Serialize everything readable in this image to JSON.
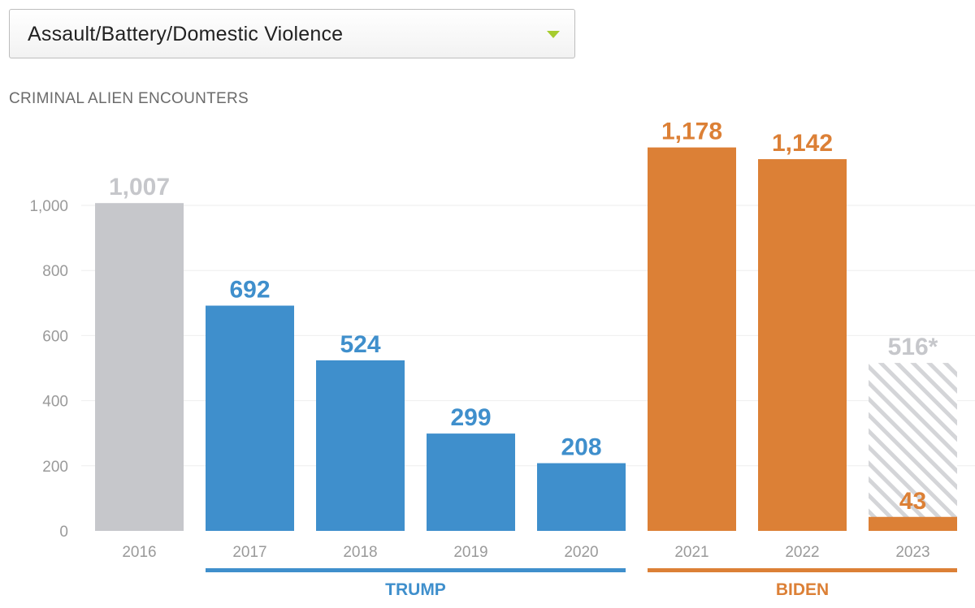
{
  "dropdown": {
    "selected": "Assault/Battery/Domestic Violence",
    "arrow_icon": "triangle-down-icon",
    "arrow_color": "#a6cc2e"
  },
  "chart_data": {
    "type": "bar",
    "title": "CRIMINAL ALIEN ENCOUNTERS",
    "categories": [
      "2016",
      "2017",
      "2018",
      "2019",
      "2020",
      "2021",
      "2022",
      "2023"
    ],
    "values": [
      1007,
      692,
      524,
      299,
      208,
      1178,
      1142,
      43
    ],
    "value_labels": [
      "1,007",
      "692",
      "524",
      "299",
      "208",
      "1,178",
      "1,142",
      "43"
    ],
    "projected": {
      "category": "2023",
      "value": 516,
      "label": "516*",
      "style": "hatched"
    },
    "ylim": [
      0,
      1000
    ],
    "yticks": [
      0,
      200,
      400,
      600,
      800,
      1000
    ],
    "ytick_labels": [
      "0",
      "200",
      "400",
      "600",
      "800",
      "1,000"
    ],
    "grid": true,
    "groups": [
      {
        "label": "TRUMP",
        "categories": [
          "2017",
          "2018",
          "2019",
          "2020"
        ],
        "color": "#3f8fcc"
      },
      {
        "label": "BIDEN",
        "categories": [
          "2021",
          "2022",
          "2023"
        ],
        "color": "#dc8036"
      }
    ],
    "colors": {
      "2016": "#c6c7cb",
      "trump": "#3f8fcc",
      "biden": "#dc8036",
      "projected": "#c6c7cb"
    }
  }
}
